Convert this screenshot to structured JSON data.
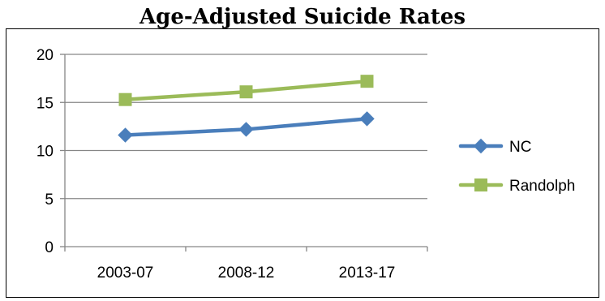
{
  "chart_data": {
    "type": "line",
    "title": "Age-Adjusted Suicide Rates",
    "xlabel": "",
    "ylabel": "",
    "categories": [
      "2003-07",
      "2008-12",
      "2013-17"
    ],
    "ylim": [
      0,
      20
    ],
    "yticks": [
      0,
      5,
      10,
      15,
      20
    ],
    "grid": true,
    "legend": "right",
    "series": [
      {
        "name": "NC",
        "values": [
          11.6,
          12.2,
          13.3
        ],
        "color": "#4a7ebb",
        "marker": "diamond"
      },
      {
        "name": "Randolph",
        "values": [
          15.3,
          16.1,
          17.2
        ],
        "color": "#9bbb59",
        "marker": "square"
      }
    ]
  }
}
